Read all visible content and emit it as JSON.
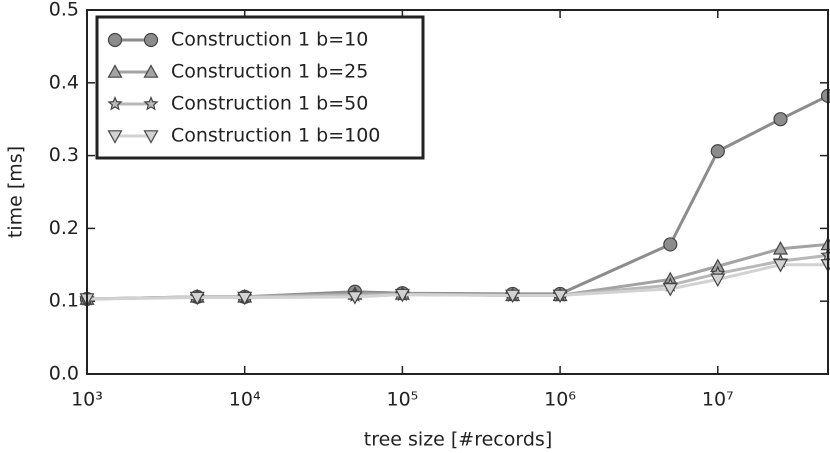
{
  "chart_data": {
    "type": "line",
    "x_label": "tree size [#records]",
    "y_label": "time [ms]",
    "x": [
      1000,
      5000,
      10000,
      50000,
      100000,
      500000,
      1000000,
      5000000,
      10000000,
      25000000,
      50000000
    ],
    "series": [
      {
        "name": "Construction 1 b=10",
        "color": "#8c8c8c",
        "marker": "circle",
        "values": [
          0.103,
          0.106,
          0.106,
          0.113,
          0.111,
          0.11,
          0.11,
          0.178,
          0.306,
          0.35,
          0.382
        ]
      },
      {
        "name": "Construction 1 b=25",
        "color": "#a3a3a3",
        "marker": "triangle-up",
        "values": [
          0.103,
          0.106,
          0.106,
          0.11,
          0.11,
          0.108,
          0.108,
          0.13,
          0.148,
          0.172,
          0.178
        ]
      },
      {
        "name": "Construction 1 b=50",
        "color": "#b8b8b8",
        "marker": "star",
        "values": [
          0.103,
          0.106,
          0.106,
          0.108,
          0.109,
          0.108,
          0.108,
          0.122,
          0.138,
          0.155,
          0.163
        ]
      },
      {
        "name": "Construction 1 b=100",
        "color": "#d2d2d2",
        "marker": "triangle-down",
        "values": [
          0.103,
          0.105,
          0.105,
          0.106,
          0.109,
          0.108,
          0.108,
          0.117,
          0.13,
          0.15,
          0.15
        ]
      }
    ],
    "x_scale": "log",
    "xlim": [
      1000,
      50000000
    ],
    "xticks": [
      {
        "value": 1000,
        "label": "10³"
      },
      {
        "value": 10000,
        "label": "10⁴"
      },
      {
        "value": 100000,
        "label": "10⁵"
      },
      {
        "value": 1000000,
        "label": "10⁶"
      },
      {
        "value": 10000000,
        "label": "10⁷"
      }
    ],
    "ylim": [
      0,
      0.5
    ],
    "yticks": [
      {
        "value": 0,
        "label": "0.0"
      },
      0.1,
      0.2,
      0.3,
      0.4,
      0.5
    ],
    "legend": "upper left"
  }
}
